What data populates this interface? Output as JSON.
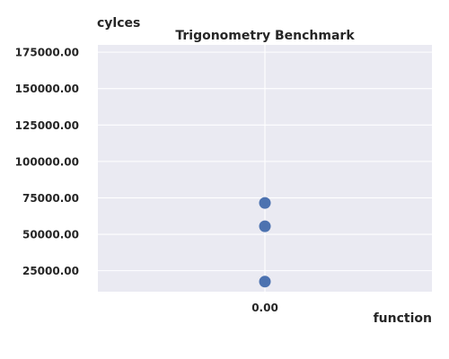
{
  "chart_data": {
    "type": "scatter",
    "title": "Trigonometry Benchmark",
    "xlabel": "function",
    "ylabel": "cylces",
    "x_ticks": [
      0.0
    ],
    "x_tick_labels": [
      "0.00"
    ],
    "y_ticks": [
      25000,
      50000,
      75000,
      100000,
      125000,
      150000,
      175000
    ],
    "y_tick_labels": [
      "25000.00",
      "50000.00",
      "75000.00",
      "100000.00",
      "125000.00",
      "150000.00",
      "175000.00"
    ],
    "xlim": [
      -1.0,
      1.0
    ],
    "ylim": [
      10600,
      180000
    ],
    "grid": true,
    "series": [
      {
        "points": [
          {
            "x": 0.0,
            "y": 71500
          },
          {
            "x": 0.0,
            "y": 55500
          },
          {
            "x": 0.0,
            "y": 17500
          }
        ]
      }
    ],
    "colors": {
      "background": "#eaeaf2",
      "grid": "#ffffff",
      "marker": "#4c72b0",
      "text": "#262626"
    }
  }
}
